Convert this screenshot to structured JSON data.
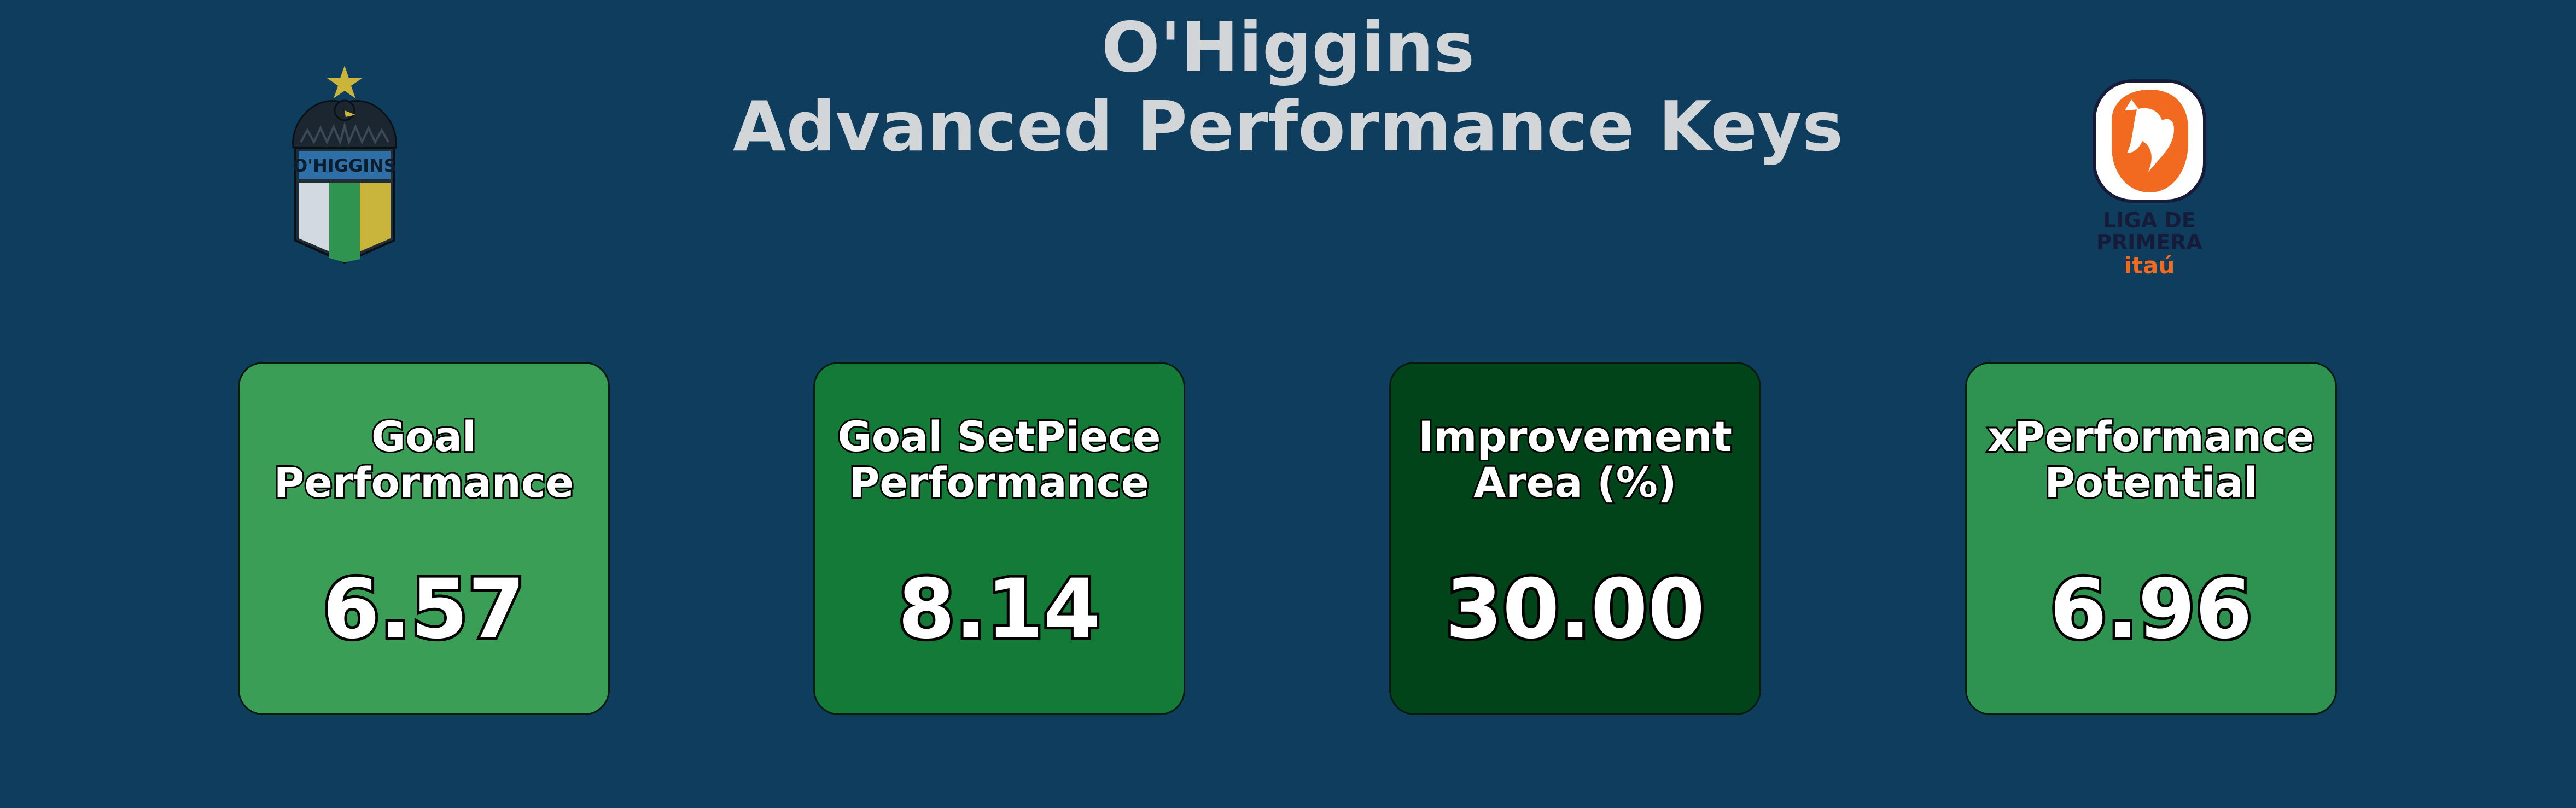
{
  "header": {
    "title_line1": "O'Higgins",
    "title_line2": "Advanced Performance Keys"
  },
  "logos": {
    "club": {
      "icon": "ohiggins-crest-icon",
      "text": "O'HIGGINS"
    },
    "league": {
      "icon": "liga-de-primera-logo-icon",
      "text_line1": "LIGA DE",
      "text_line2": "PRIMERA",
      "text_line3": "itaú"
    }
  },
  "colors": {
    "background": "#0f3d5e",
    "title": "#d3d6d9"
  },
  "cards": [
    {
      "label": "Goal\nPerformance",
      "value": "6.57",
      "color": "#3a9e57"
    },
    {
      "label": "Goal SetPiece\nPerformance",
      "value": "8.14",
      "color": "#137a37"
    },
    {
      "label": "Improvement\nArea (%)",
      "value": "30.00",
      "color": "#024419"
    },
    {
      "label": "xPerformance\nPotential",
      "value": "6.96",
      "color": "#2e9350"
    }
  ]
}
